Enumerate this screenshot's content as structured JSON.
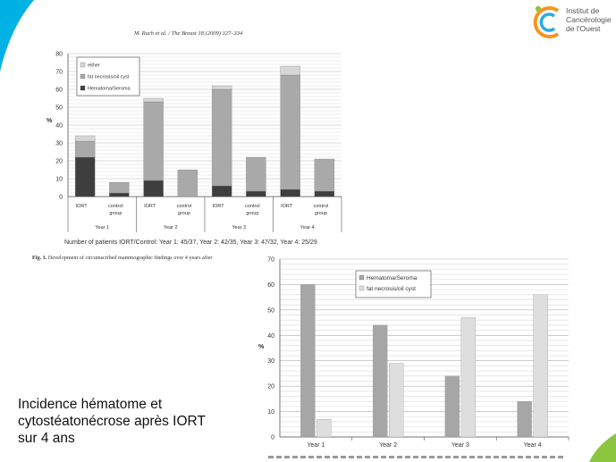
{
  "logo": {
    "lines": [
      "Institut de",
      "Cancérologie",
      "de l'Ouest"
    ],
    "colors": [
      "#8cc63f",
      "#f7941d",
      "#29abe2"
    ]
  },
  "slide": {
    "accent_color": "#00b2e3",
    "text_lines": [
      "Incidence hématome et",
      "cytostéatonécrose après IORT",
      "sur 4 ans"
    ]
  },
  "figure": {
    "header": "M. Ruch et al. / The Breast 18 (2009) 327–334",
    "caption_label": "Fig. 1.",
    "caption_text": "Development of circumscribed mammographic findings over 4 years after",
    "patients_note": "Number of patients IORT/Control:  Year 1: 45/37, Year 2: 42/35, Year 3: 47/32,  Year 4: 25/29"
  },
  "chart_data": [
    {
      "type": "bar",
      "stacked": true,
      "ylabel": "%",
      "ylim": [
        0,
        80
      ],
      "yticks": [
        0,
        10,
        20,
        30,
        40,
        50,
        60,
        70,
        80
      ],
      "grid": true,
      "legend_position": "top-left",
      "categories": [
        {
          "label": "IORT",
          "sublabel": "",
          "group": "Year 1"
        },
        {
          "label": "control",
          "sublabel": "group",
          "group": "Year 1"
        },
        {
          "label": "IORT",
          "sublabel": "",
          "group": "Year 2"
        },
        {
          "label": "control",
          "sublabel": "group",
          "group": "Year 2"
        },
        {
          "label": "IORT",
          "sublabel": "",
          "group": "Year 3"
        },
        {
          "label": "control",
          "sublabel": "group",
          "group": "Year 3"
        },
        {
          "label": "IORT",
          "sublabel": "",
          "group": "Year 4"
        },
        {
          "label": "control",
          "sublabel": "group",
          "group": "Year 4"
        }
      ],
      "groups": [
        "Year 1",
        "Year 2",
        "Year 3",
        "Year 4"
      ],
      "series": [
        {
          "name": "Hematoma/Seroma",
          "color": "#3e3e3e",
          "values": [
            22,
            2,
            9,
            0,
            6,
            3,
            4,
            3
          ]
        },
        {
          "name": "fat necrosis/oil cyst",
          "color": "#a9a9a9",
          "values": [
            9,
            6,
            44,
            15,
            54,
            19,
            64,
            18
          ]
        },
        {
          "name": "either",
          "color": "#d6d6d6",
          "values": [
            3,
            0,
            2,
            0,
            2,
            0,
            5,
            0
          ]
        }
      ],
      "legend_order": [
        "either",
        "fat necrosis/oil cyst",
        "Hematoma/Seroma"
      ]
    },
    {
      "type": "bar",
      "stacked": false,
      "ylabel": "%",
      "ylim": [
        0,
        70
      ],
      "yticks": [
        0,
        10,
        20,
        30,
        40,
        50,
        60,
        70
      ],
      "grid": true,
      "legend_position": "top-left",
      "categories": [
        "Year 1",
        "Year 2",
        "Year 3",
        "Year 4"
      ],
      "series": [
        {
          "name": "Hematoma/Seroma",
          "color": "#a6a6a6",
          "values": [
            60,
            44,
            24,
            14
          ]
        },
        {
          "name": "fat necrosis/oil cyst",
          "color": "#dedede",
          "values": [
            7,
            29,
            47,
            56
          ]
        }
      ]
    }
  ]
}
